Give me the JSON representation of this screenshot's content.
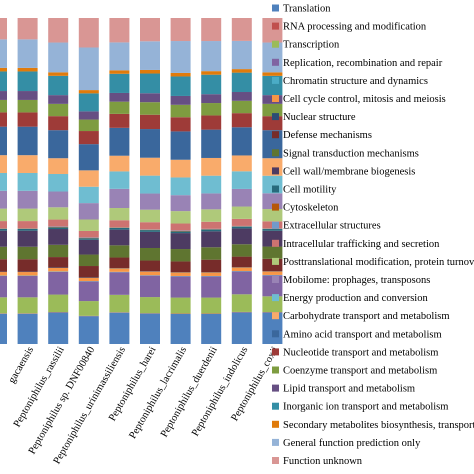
{
  "chart_data": {
    "type": "bar",
    "stacked": true,
    "normalized": true,
    "title": "",
    "xlabel": "",
    "ylabel": "",
    "legend_position": "right",
    "categories": [
      "",
      "gacaensis",
      "Peptoniphilus_rassilii",
      "Peptoniphilus sp. DNF00840",
      "Peptoniphilus_urinimassiliensis",
      "Peptoniphilus_harei",
      "Peptoniphilus_lacrimalis",
      "Peptoniphilus_duerdenii",
      "Peptoniphilus_indolicus",
      "Peptoniphilus_coxii"
    ],
    "series": [
      {
        "name": "Translation",
        "color": "#4F81BD",
        "values": [
          8.5,
          8.5,
          9.0,
          8.5,
          9.0,
          8.5,
          8.5,
          8.5,
          9.0,
          9.0
        ]
      },
      {
        "name": "RNA processing and modification",
        "color": "#C0504D",
        "values": [
          0.1,
          0.1,
          0.1,
          0.1,
          0.1,
          0.1,
          0.1,
          0.1,
          0.1,
          0.1
        ]
      },
      {
        "name": "Transcription",
        "color": "#9BBB59",
        "values": [
          4.5,
          4.5,
          5.0,
          4.5,
          5.0,
          4.5,
          4.5,
          4.5,
          5.0,
          4.5
        ]
      },
      {
        "name": "Replication, recombination and repair",
        "color": "#8064A2",
        "values": [
          6.0,
          6.0,
          6.5,
          6.0,
          6.5,
          6.0,
          6.0,
          6.0,
          6.5,
          6.0
        ]
      },
      {
        "name": "Chromatin structure and dynamics",
        "color": "#4BACC6",
        "values": [
          0.1,
          0.1,
          0.1,
          0.1,
          0.1,
          0.1,
          0.1,
          0.1,
          0.1,
          0.1
        ]
      },
      {
        "name": "Cell cycle control, mitosis and meiosis",
        "color": "#F79646",
        "values": [
          1.0,
          1.0,
          1.0,
          1.0,
          1.0,
          1.0,
          1.0,
          1.0,
          1.0,
          1.0
        ]
      },
      {
        "name": "Nuclear structure",
        "color": "#2C4D75",
        "values": [
          0.1,
          0.1,
          0.1,
          0.1,
          0.1,
          0.1,
          0.1,
          0.1,
          0.1,
          0.1
        ]
      },
      {
        "name": "Defense mechanisms",
        "color": "#772C2A",
        "values": [
          3.5,
          3.5,
          3.0,
          3.5,
          3.0,
          3.0,
          3.0,
          3.5,
          3.0,
          3.5
        ]
      },
      {
        "name": "Signal transduction mechanisms",
        "color": "#5F7530",
        "values": [
          3.5,
          3.5,
          3.5,
          3.5,
          3.5,
          3.5,
          3.5,
          3.5,
          3.5,
          3.5
        ]
      },
      {
        "name": "Cell wall/membrane biogenesis",
        "color": "#4D3B62",
        "values": [
          4.5,
          4.5,
          4.5,
          4.5,
          4.5,
          4.5,
          4.5,
          4.5,
          4.5,
          4.5
        ]
      },
      {
        "name": "Cell motility",
        "color": "#276A7C",
        "values": [
          0.5,
          0.5,
          0.5,
          0.5,
          0.5,
          0.5,
          0.5,
          0.5,
          0.5,
          0.5
        ]
      },
      {
        "name": "Cytoskeleton",
        "color": "#B65708",
        "values": [
          0.1,
          0.1,
          0.1,
          0.1,
          0.1,
          0.1,
          0.1,
          0.1,
          0.1,
          0.1
        ]
      },
      {
        "name": "Extracellular structures",
        "color": "#729ACA",
        "values": [
          0.1,
          0.1,
          0.1,
          0.1,
          0.1,
          0.1,
          0.1,
          0.1,
          0.1,
          0.1
        ]
      },
      {
        "name": "Intracellular trafficking and secretion",
        "color": "#CD7371",
        "values": [
          2.0,
          2.0,
          2.0,
          2.0,
          2.0,
          2.0,
          2.0,
          2.0,
          2.0,
          2.0
        ]
      },
      {
        "name": "Posttranslational modification, protein turnover, chaperones",
        "color": "#AFC97A",
        "values": [
          3.5,
          3.5,
          3.5,
          3.5,
          3.5,
          3.5,
          3.5,
          3.5,
          3.5,
          3.5
        ]
      },
      {
        "name": "Mobilome: prophages, transposons",
        "color": "#9983B5",
        "values": [
          5.0,
          5.0,
          4.5,
          5.0,
          5.5,
          4.5,
          4.5,
          4.5,
          5.0,
          4.5
        ]
      },
      {
        "name": "Energy production and conversion",
        "color": "#6FBDD1",
        "values": [
          5.0,
          5.0,
          5.0,
          5.0,
          5.0,
          5.0,
          5.0,
          5.0,
          5.0,
          5.0
        ]
      },
      {
        "name": "Carbohydrate transport and metabolism",
        "color": "#F9AB6B",
        "values": [
          5.0,
          5.0,
          4.5,
          5.0,
          4.5,
          5.0,
          5.0,
          5.0,
          4.5,
          5.0
        ]
      },
      {
        "name": "Amino acid transport and metabolism",
        "color": "#3A679C",
        "values": [
          8.0,
          8.0,
          8.0,
          8.0,
          8.0,
          8.0,
          8.0,
          8.0,
          8.0,
          8.0
        ]
      },
      {
        "name": "Nucleotide transport and metabolism",
        "color": "#9E3B38",
        "values": [
          4.0,
          4.0,
          4.0,
          4.0,
          4.0,
          4.0,
          4.0,
          4.0,
          4.0,
          4.0
        ]
      },
      {
        "name": "Coenzyme transport and metabolism",
        "color": "#7E9C40",
        "values": [
          3.5,
          3.5,
          3.5,
          3.5,
          3.5,
          3.5,
          3.5,
          3.5,
          3.5,
          3.5
        ]
      },
      {
        "name": "Lipid transport and metabolism",
        "color": "#664F83",
        "values": [
          2.5,
          2.5,
          2.5,
          2.5,
          2.5,
          2.5,
          2.5,
          2.5,
          2.5,
          2.5
        ]
      },
      {
        "name": "Inorganic ion transport and metabolism",
        "color": "#348EA5",
        "values": [
          5.5,
          5.5,
          5.5,
          5.5,
          5.5,
          5.5,
          5.5,
          5.5,
          5.5,
          5.5
        ]
      },
      {
        "name": "Secondary metabolites biosynthesis, transport and catabolism",
        "color": "#E07B0B",
        "values": [
          1.0,
          1.0,
          1.0,
          1.0,
          1.0,
          1.0,
          1.0,
          1.0,
          1.0,
          1.0
        ]
      },
      {
        "name": "General function prediction only",
        "color": "#95B3D7",
        "values": [
          8.0,
          8.0,
          8.5,
          13.0,
          8.0,
          8.0,
          9.0,
          8.5,
          8.0,
          8.5
        ]
      },
      {
        "name": "Function unknown",
        "color": "#D99694",
        "values": [
          6.0,
          6.0,
          7.0,
          9.0,
          7.0,
          6.5,
          6.5,
          6.5,
          6.5,
          7.0
        ]
      }
    ]
  }
}
